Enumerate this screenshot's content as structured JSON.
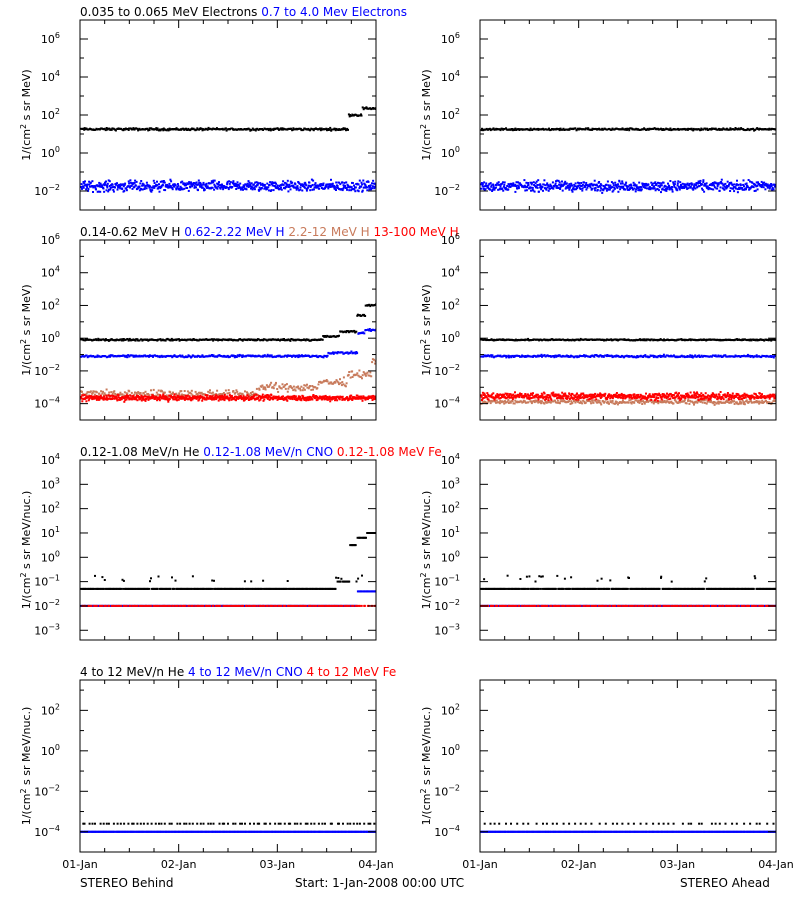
{
  "colors": {
    "black": "#000000",
    "blue": "#0000ff",
    "salmon": "#c87b5c",
    "red": "#ff0000"
  },
  "footer": {
    "left_label": "STEREO Behind",
    "center_label": "Start:  1-Jan-2008 00:00 UTC",
    "right_label": "STEREO Ahead"
  },
  "chart_data": [
    {
      "type": "scatter",
      "spacecraft": "Behind",
      "yscale": "log",
      "ylabel": "1/(cm2 s sr MeV)",
      "ylim_exp": [
        -3,
        7
      ],
      "ytick_exp": [
        -2,
        0,
        2,
        4,
        6
      ],
      "xlim_days": [
        0,
        3
      ],
      "xticks": [
        "01-Jan",
        "02-Jan",
        "03-Jan",
        "04-Jan"
      ],
      "legend": [
        {
          "label": "0.035 to 0.065 MeV Electrons",
          "color": "#000000"
        },
        {
          "label": "0.7 to 4.0 Mev Electrons",
          "color": "#0000ff"
        }
      ],
      "series": [
        {
          "name": "0.035 to 0.065 MeV Electrons",
          "color": "#000000",
          "base_exp": 1.25,
          "jitter": 0.09,
          "steps": [
            [
              2.71,
              2.0
            ],
            [
              2.85,
              2.35
            ]
          ]
        },
        {
          "name": "0.7 to 4.0 Mev Electrons",
          "color": "#0000ff",
          "base_exp": -1.75,
          "jitter": 0.4,
          "density": 2
        }
      ]
    },
    {
      "type": "scatter",
      "spacecraft": "Ahead",
      "yscale": "log",
      "ylabel": "1/(cm2 s sr MeV)",
      "ylim_exp": [
        -3,
        7
      ],
      "ytick_exp": [
        -2,
        0,
        2,
        4,
        6
      ],
      "xlim_days": [
        0,
        3
      ],
      "xticks": [
        "01-Jan",
        "02-Jan",
        "03-Jan",
        "04-Jan"
      ],
      "series": [
        {
          "name": "0.035 to 0.065 MeV Electrons",
          "color": "#000000",
          "base_exp": 1.25,
          "jitter": 0.08
        },
        {
          "name": "0.7 to 4.0 Mev Electrons",
          "color": "#0000ff",
          "base_exp": -1.75,
          "jitter": 0.4,
          "density": 2
        }
      ]
    },
    {
      "type": "scatter",
      "spacecraft": "Behind",
      "yscale": "log",
      "ylabel": "1/(cm2 s sr MeV)",
      "ylim_exp": [
        -5,
        6
      ],
      "ytick_exp": [
        -4,
        -2,
        0,
        2,
        4,
        6
      ],
      "xlim_days": [
        0,
        3
      ],
      "xticks": [
        "01-Jan",
        "02-Jan",
        "03-Jan",
        "04-Jan"
      ],
      "legend": [
        {
          "label": "0.14-0.62 MeV H",
          "color": "#000000"
        },
        {
          "label": "0.62-2.22 MeV H",
          "color": "#0000ff"
        },
        {
          "label": "2.2-12 MeV H",
          "color": "#c87b5c"
        },
        {
          "label": "13-100 MeV H",
          "color": "#ff0000"
        }
      ],
      "series": [
        {
          "name": "0.14-0.62 MeV H",
          "color": "#000000",
          "base_exp": -0.1,
          "jitter": 0.08,
          "steps": [
            [
              2.45,
              0.1
            ],
            [
              2.62,
              0.4
            ],
            [
              2.8,
              1.4
            ],
            [
              2.88,
              2.0
            ]
          ]
        },
        {
          "name": "0.62-2.22 MeV H",
          "color": "#0000ff",
          "base_exp": -1.1,
          "jitter": 0.1,
          "steps": [
            [
              2.5,
              -0.9
            ],
            [
              2.8,
              0.3
            ],
            [
              2.88,
              0.5
            ]
          ]
        },
        {
          "name": "2.2-12 MeV H",
          "color": "#c87b5c",
          "base_exp": -3.4,
          "jitter": 0.35,
          "steps": [
            [
              1.8,
              -3.0
            ],
            [
              2.4,
              -2.7
            ],
            [
              2.7,
              -2.2
            ],
            [
              2.95,
              -1.5
            ]
          ]
        },
        {
          "name": "13-100 MeV H",
          "color": "#ff0000",
          "base_exp": -3.65,
          "jitter": 0.25,
          "density": 2
        }
      ]
    },
    {
      "type": "scatter",
      "spacecraft": "Ahead",
      "yscale": "log",
      "ylabel": "1/(cm2 s sr MeV)",
      "ylim_exp": [
        -5,
        6
      ],
      "ytick_exp": [
        -4,
        -2,
        0,
        2,
        4,
        6
      ],
      "xlim_days": [
        0,
        3
      ],
      "xticks": [
        "01-Jan",
        "02-Jan",
        "03-Jan",
        "04-Jan"
      ],
      "series": [
        {
          "name": "0.14-0.62 MeV H",
          "color": "#000000",
          "base_exp": -0.1,
          "jitter": 0.06
        },
        {
          "name": "0.62-2.22 MeV H",
          "color": "#0000ff",
          "base_exp": -1.1,
          "jitter": 0.1
        },
        {
          "name": "2.2-12 MeV H",
          "color": "#c87b5c",
          "base_exp": -3.9,
          "jitter": 0.2
        },
        {
          "name": "13-100 MeV H",
          "color": "#ff0000",
          "base_exp": -3.55,
          "jitter": 0.3,
          "density": 2
        }
      ]
    },
    {
      "type": "scatter",
      "spacecraft": "Behind",
      "yscale": "log",
      "ylabel": "1/(cm2 s sr MeV/nuc.)",
      "ylim_exp": [
        -3.4,
        4
      ],
      "ytick_exp": [
        -3,
        -2,
        -1,
        0,
        1,
        2,
        3,
        4
      ],
      "xlim_days": [
        0,
        3
      ],
      "xticks": [
        "01-Jan",
        "02-Jan",
        "03-Jan",
        "04-Jan"
      ],
      "legend": [
        {
          "label": "0.12-1.08 MeV/n He",
          "color": "#000000"
        },
        {
          "label": "0.12-1.08 MeV/n CNO",
          "color": "#0000ff"
        },
        {
          "label": "0.12-1.08 MeV Fe",
          "color": "#ff0000"
        }
      ],
      "series": [
        {
          "name": "0.12-1.08 MeV/n He",
          "color": "#000000",
          "base_exp": -1.3,
          "jitter": 0,
          "sparse_up": -1.0,
          "steps": [
            [
              2.6,
              -1.0
            ],
            [
              2.72,
              0.5
            ],
            [
              2.8,
              0.8
            ],
            [
              2.9,
              1.0
            ]
          ]
        },
        {
          "name": "0.12-1.08 MeV/n CNO",
          "color": "#0000ff",
          "base_exp": -2.0,
          "jitter": 0,
          "steps": [
            [
              2.8,
              -1.4
            ]
          ]
        },
        {
          "name": "0.12-1.08 MeV Fe",
          "color": "#ff0000",
          "base_exp": -2.0,
          "jitter": 0,
          "density": 0.5
        }
      ]
    },
    {
      "type": "scatter",
      "spacecraft": "Ahead",
      "yscale": "log",
      "ylabel": "1/(cm2 s sr MeV/nuc.)",
      "ylim_exp": [
        -3.4,
        4
      ],
      "ytick_exp": [
        -3,
        -2,
        -1,
        0,
        1,
        2,
        3,
        4
      ],
      "xlim_days": [
        0,
        3
      ],
      "xticks": [
        "01-Jan",
        "02-Jan",
        "03-Jan",
        "04-Jan"
      ],
      "series": [
        {
          "name": "0.12-1.08 MeV/n He",
          "color": "#000000",
          "base_exp": -1.3,
          "jitter": 0,
          "sparse_up": -1.0
        },
        {
          "name": "0.12-1.08 MeV/n CNO",
          "color": "#0000ff",
          "base_exp": -2.0,
          "jitter": 0
        },
        {
          "name": "0.12-1.08 MeV Fe",
          "color": "#ff0000",
          "base_exp": -2.0,
          "jitter": 0,
          "density": 0.5
        }
      ]
    },
    {
      "type": "scatter",
      "spacecraft": "Behind",
      "yscale": "log",
      "ylabel": "1/(cm2 s sr MeV/nuc.)",
      "ylim_exp": [
        -5,
        3.5
      ],
      "ytick_exp": [
        -4,
        -2,
        0,
        2
      ],
      "xlim_days": [
        0,
        3
      ],
      "xticks": [
        "01-Jan",
        "02-Jan",
        "03-Jan",
        "04-Jan"
      ],
      "legend": [
        {
          "label": "4 to 12 MeV/n He",
          "color": "#000000"
        },
        {
          "label": "4 to 12 MeV/n CNO",
          "color": "#0000ff"
        },
        {
          "label": "4 to 12 MeV Fe",
          "color": "#ff0000"
        }
      ],
      "series": [
        {
          "name": "4 to 12 MeV/n He",
          "color": "#000000",
          "base_exp": -3.6,
          "jitter": 0,
          "density": 0.25
        },
        {
          "name": "4 to 12 MeV/n CNO",
          "color": "#0000ff",
          "base_exp": -4.0,
          "jitter": 0,
          "density": 1.2
        }
      ]
    },
    {
      "type": "scatter",
      "spacecraft": "Ahead",
      "yscale": "log",
      "ylabel": "1/(cm2 s sr MeV/nuc.)",
      "ylim_exp": [
        -5,
        3.5
      ],
      "ytick_exp": [
        -4,
        -2,
        0,
        2
      ],
      "xlim_days": [
        0,
        3
      ],
      "xticks": [
        "01-Jan",
        "02-Jan",
        "03-Jan",
        "04-Jan"
      ],
      "series": [
        {
          "name": "4 to 12 MeV/n He",
          "color": "#000000",
          "base_exp": -3.6,
          "jitter": 0,
          "density": 0.15
        },
        {
          "name": "4 to 12 MeV/n CNO",
          "color": "#0000ff",
          "base_exp": -4.0,
          "jitter": 0,
          "density": 1.2
        }
      ]
    }
  ]
}
